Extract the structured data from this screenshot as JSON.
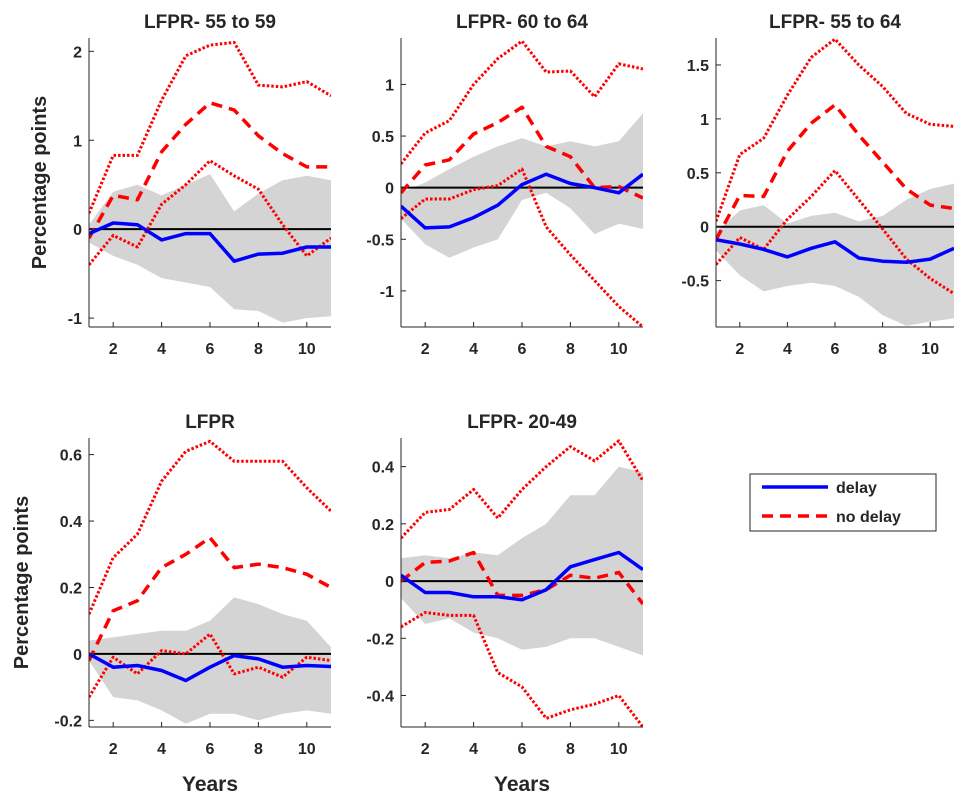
{
  "colors": {
    "delay": "#0000ff",
    "no_delay": "#ff0000",
    "band": "#d4d4d4",
    "zero_line": "#000000"
  },
  "legend": {
    "entries": [
      "delay",
      "no delay"
    ]
  },
  "chart_data": [
    {
      "type": "line",
      "title": "LFPR- 55 to 59",
      "ylabel": "Percentage points",
      "xlabel": "",
      "x": [
        1,
        2,
        3,
        4,
        5,
        6,
        7,
        8,
        9,
        10,
        11
      ],
      "xlim": [
        1,
        11
      ],
      "ylim": [
        -1.1,
        2.15
      ],
      "xticks": [
        2,
        4,
        6,
        8,
        10
      ],
      "yticks": [
        -1,
        0,
        1,
        2
      ],
      "series": [
        {
          "name": "delay",
          "style": "solid",
          "values": [
            -0.05,
            0.07,
            0.05,
            -0.12,
            -0.05,
            -0.05,
            -0.36,
            -0.28,
            -0.27,
            -0.2,
            -0.2
          ]
        },
        {
          "name": "no delay",
          "style": "dashed",
          "values": [
            -0.1,
            0.38,
            0.33,
            0.87,
            1.18,
            1.42,
            1.34,
            1.05,
            0.85,
            0.7,
            0.7
          ]
        },
        {
          "style": "dotted",
          "values": [
            0.18,
            0.83,
            0.83,
            1.45,
            1.95,
            2.07,
            2.1,
            1.62,
            1.6,
            1.66,
            1.5
          ]
        },
        {
          "style": "dotted",
          "values": [
            -0.4,
            -0.07,
            -0.2,
            0.28,
            0.5,
            0.77,
            0.6,
            0.45,
            0.05,
            -0.3,
            -0.1
          ]
        }
      ],
      "band": {
        "upper": [
          0.05,
          0.42,
          0.5,
          0.38,
          0.5,
          0.62,
          0.2,
          0.4,
          0.55,
          0.6,
          0.55
        ],
        "lower": [
          -0.15,
          -0.3,
          -0.4,
          -0.55,
          -0.6,
          -0.65,
          -0.9,
          -0.92,
          -1.05,
          -1.0,
          -0.98
        ]
      }
    },
    {
      "type": "line",
      "title": "LFPR- 60 to 64",
      "ylabel": "",
      "xlabel": "",
      "x": [
        1,
        2,
        3,
        4,
        5,
        6,
        7,
        8,
        9,
        10,
        11
      ],
      "xlim": [
        1,
        11
      ],
      "ylim": [
        -1.35,
        1.45
      ],
      "xticks": [
        2,
        4,
        6,
        8,
        10
      ],
      "yticks": [
        -1,
        -0.5,
        0,
        0.5,
        1
      ],
      "series": [
        {
          "name": "delay",
          "style": "solid",
          "values": [
            -0.18,
            -0.39,
            -0.38,
            -0.29,
            -0.17,
            0.03,
            0.13,
            0.04,
            0.0,
            -0.05,
            0.13
          ]
        },
        {
          "name": "no delay",
          "style": "dashed",
          "values": [
            -0.05,
            0.22,
            0.27,
            0.52,
            0.63,
            0.78,
            0.4,
            0.3,
            0.0,
            0.01,
            -0.1
          ]
        },
        {
          "style": "dotted",
          "values": [
            0.23,
            0.53,
            0.65,
            1.0,
            1.25,
            1.42,
            1.12,
            1.13,
            0.88,
            1.2,
            1.15
          ]
        },
        {
          "style": "dotted",
          "values": [
            -0.3,
            -0.11,
            -0.11,
            -0.02,
            0.02,
            0.18,
            -0.38,
            -0.65,
            -0.9,
            -1.15,
            -1.35
          ]
        }
      ],
      "band": {
        "upper": [
          -0.05,
          0.05,
          0.18,
          0.3,
          0.4,
          0.48,
          0.4,
          0.45,
          0.4,
          0.45,
          0.72
        ],
        "lower": [
          -0.3,
          -0.55,
          -0.68,
          -0.58,
          -0.5,
          -0.12,
          -0.05,
          -0.2,
          -0.45,
          -0.35,
          -0.4
        ]
      }
    },
    {
      "type": "line",
      "title": "LFPR- 55 to 64",
      "ylabel": "",
      "xlabel": "",
      "x": [
        1,
        2,
        3,
        4,
        5,
        6,
        7,
        8,
        9,
        10,
        11
      ],
      "xlim": [
        1,
        11
      ],
      "ylim": [
        -0.93,
        1.75
      ],
      "xticks": [
        2,
        4,
        6,
        8,
        10
      ],
      "yticks": [
        -0.5,
        0,
        0.5,
        1,
        1.5
      ],
      "series": [
        {
          "name": "delay",
          "style": "solid",
          "values": [
            -0.12,
            -0.16,
            -0.21,
            -0.28,
            -0.2,
            -0.14,
            -0.29,
            -0.32,
            -0.33,
            -0.3,
            -0.2
          ]
        },
        {
          "name": "no delay",
          "style": "dashed",
          "values": [
            -0.12,
            0.29,
            0.28,
            0.7,
            0.96,
            1.13,
            0.85,
            0.6,
            0.35,
            0.2,
            0.17
          ]
        },
        {
          "style": "dotted",
          "values": [
            0.05,
            0.67,
            0.82,
            1.22,
            1.57,
            1.74,
            1.5,
            1.3,
            1.05,
            0.95,
            0.93
          ]
        },
        {
          "style": "dotted",
          "values": [
            -0.35,
            -0.1,
            -0.21,
            0.07,
            0.28,
            0.52,
            0.25,
            -0.02,
            -0.3,
            -0.48,
            -0.62
          ]
        }
      ],
      "band": {
        "upper": [
          -0.05,
          0.15,
          0.2,
          0.03,
          0.1,
          0.13,
          0.05,
          0.1,
          0.25,
          0.35,
          0.4
        ],
        "lower": [
          -0.22,
          -0.45,
          -0.6,
          -0.55,
          -0.52,
          -0.55,
          -0.65,
          -0.82,
          -0.92,
          -0.88,
          -0.85
        ]
      }
    },
    {
      "type": "line",
      "title": "LFPR",
      "ylabel": "Percentage points",
      "xlabel": "Years",
      "x": [
        1,
        2,
        3,
        4,
        5,
        6,
        7,
        8,
        9,
        10,
        11
      ],
      "xlim": [
        1,
        11
      ],
      "ylim": [
        -0.22,
        0.65
      ],
      "xticks": [
        2,
        4,
        6,
        8,
        10
      ],
      "yticks": [
        -0.2,
        0,
        0.2,
        0.4,
        0.6
      ],
      "series": [
        {
          "name": "delay",
          "style": "solid",
          "values": [
            0.0,
            -0.04,
            -0.035,
            -0.05,
            -0.08,
            -0.04,
            -0.005,
            -0.015,
            -0.04,
            -0.035,
            -0.038
          ]
        },
        {
          "name": "no delay",
          "style": "dashed",
          "values": [
            -0.02,
            0.13,
            0.16,
            0.26,
            0.3,
            0.35,
            0.26,
            0.27,
            0.26,
            0.24,
            0.2
          ]
        },
        {
          "style": "dotted",
          "values": [
            0.12,
            0.29,
            0.36,
            0.52,
            0.61,
            0.64,
            0.58,
            0.58,
            0.58,
            0.5,
            0.43
          ]
        },
        {
          "style": "dotted",
          "values": [
            -0.13,
            -0.01,
            -0.06,
            0.01,
            0.0,
            0.06,
            -0.06,
            -0.04,
            -0.07,
            -0.01,
            -0.02
          ]
        }
      ],
      "band": {
        "upper": [
          0.04,
          0.05,
          0.06,
          0.07,
          0.07,
          0.1,
          0.17,
          0.15,
          0.12,
          0.1,
          0.02
        ],
        "lower": [
          -0.02,
          -0.13,
          -0.14,
          -0.17,
          -0.21,
          -0.18,
          -0.18,
          -0.2,
          -0.18,
          -0.17,
          -0.18
        ]
      }
    },
    {
      "type": "line",
      "title": "LFPR- 20-49",
      "ylabel": "",
      "xlabel": "Years",
      "x": [
        1,
        2,
        3,
        4,
        5,
        6,
        7,
        8,
        9,
        10,
        11
      ],
      "xlim": [
        1,
        11
      ],
      "ylim": [
        -0.51,
        0.5
      ],
      "xticks": [
        2,
        4,
        6,
        8,
        10
      ],
      "yticks": [
        -0.4,
        -0.2,
        0,
        0.2,
        0.4
      ],
      "series": [
        {
          "name": "delay",
          "style": "solid",
          "values": [
            0.02,
            -0.04,
            -0.04,
            -0.055,
            -0.055,
            -0.065,
            -0.03,
            0.05,
            0.075,
            0.1,
            0.04
          ]
        },
        {
          "name": "no delay",
          "style": "dashed",
          "values": [
            0.0,
            0.065,
            0.07,
            0.1,
            -0.05,
            -0.05,
            -0.03,
            0.02,
            0.01,
            0.03,
            -0.08
          ]
        },
        {
          "style": "dotted",
          "values": [
            0.15,
            0.24,
            0.25,
            0.32,
            0.22,
            0.32,
            0.4,
            0.47,
            0.42,
            0.49,
            0.35
          ]
        },
        {
          "style": "dotted",
          "values": [
            -0.16,
            -0.11,
            -0.12,
            -0.12,
            -0.32,
            -0.37,
            -0.48,
            -0.45,
            -0.43,
            -0.4,
            -0.51
          ]
        }
      ],
      "band": {
        "upper": [
          0.08,
          0.09,
          0.08,
          0.1,
          0.09,
          0.15,
          0.2,
          0.3,
          0.3,
          0.4,
          0.38
        ],
        "lower": [
          -0.06,
          -0.15,
          -0.13,
          -0.18,
          -0.2,
          -0.24,
          -0.23,
          -0.2,
          -0.2,
          -0.23,
          -0.26
        ]
      }
    }
  ]
}
